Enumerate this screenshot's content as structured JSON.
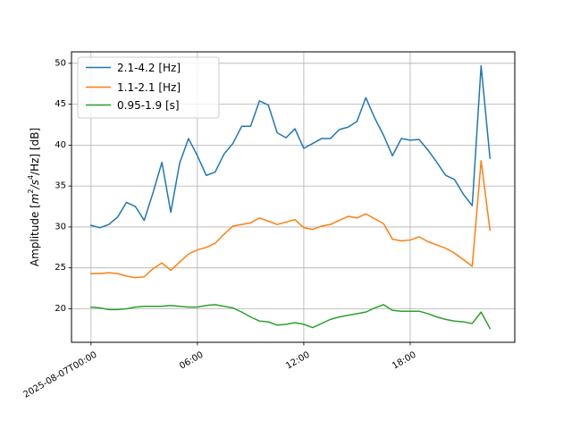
{
  "chart_data": {
    "type": "line",
    "title": "",
    "xlabel": "",
    "ylabel": "Amplitude [m²/s⁴/Hz] [dB]",
    "ylabel_parts": {
      "a": "Amplitude [",
      "m": "m",
      "sq": "2",
      "s": "/s",
      "four": "4",
      "hz": "/Hz] [dB]"
    },
    "x_start": "2025-08-07T00:00",
    "x_step_hours": 0.5,
    "xlim_hours": [
      -1.1,
      23.9
    ],
    "ylim": [
      15.9,
      51.4
    ],
    "x_ticks": [
      {
        "hour": 0,
        "label": "2025-08-07T00:00"
      },
      {
        "hour": 6,
        "label": "06:00"
      },
      {
        "hour": 12,
        "label": "12:00"
      },
      {
        "hour": 18,
        "label": "18:00"
      }
    ],
    "y_ticks": [
      20,
      25,
      30,
      35,
      40,
      45,
      50
    ],
    "grid": true,
    "legend_position": "upper-left",
    "series": [
      {
        "name": "2.1-4.2 [Hz]",
        "color": "#1f77b4",
        "values": [
          30.2,
          29.9,
          30.3,
          31.2,
          33.0,
          32.5,
          30.8,
          34.2,
          37.9,
          31.8,
          37.8,
          40.8,
          38.7,
          36.3,
          36.7,
          38.9,
          40.2,
          42.3,
          42.3,
          45.4,
          44.9,
          41.5,
          40.9,
          42.0,
          39.6,
          40.2,
          40.8,
          40.8,
          41.9,
          42.2,
          42.9,
          45.8,
          43.3,
          41.2,
          38.7,
          40.8,
          40.6,
          40.7,
          39.4,
          37.9,
          36.3,
          35.8,
          34.0,
          32.6,
          49.7,
          38.4
        ]
      },
      {
        "name": "1.1-2.1 [Hz]",
        "color": "#ff7f0e",
        "values": [
          24.3,
          24.3,
          24.4,
          24.3,
          24.0,
          23.8,
          23.9,
          24.9,
          25.6,
          24.7,
          25.7,
          26.7,
          27.2,
          27.5,
          28.0,
          29.1,
          30.1,
          30.3,
          30.5,
          31.1,
          30.7,
          30.3,
          30.6,
          30.9,
          29.9,
          29.7,
          30.1,
          30.3,
          30.8,
          31.3,
          31.1,
          31.6,
          31.0,
          30.4,
          28.5,
          28.3,
          28.4,
          28.8,
          28.2,
          27.8,
          27.4,
          26.8,
          26.0,
          25.2,
          38.1,
          29.6
        ]
      },
      {
        "name": "0.95-1.9 [s]",
        "color": "#2ca02c",
        "values": [
          20.2,
          20.1,
          19.9,
          19.9,
          20.0,
          20.2,
          20.3,
          20.3,
          20.3,
          20.4,
          20.3,
          20.2,
          20.2,
          20.4,
          20.5,
          20.3,
          20.1,
          19.6,
          19.0,
          18.5,
          18.4,
          18.0,
          18.1,
          18.3,
          18.1,
          17.7,
          18.2,
          18.7,
          19.0,
          19.2,
          19.4,
          19.6,
          20.1,
          20.5,
          19.8,
          19.7,
          19.7,
          19.7,
          19.4,
          19.0,
          18.7,
          18.5,
          18.4,
          18.2,
          19.6,
          17.6
        ]
      }
    ]
  }
}
